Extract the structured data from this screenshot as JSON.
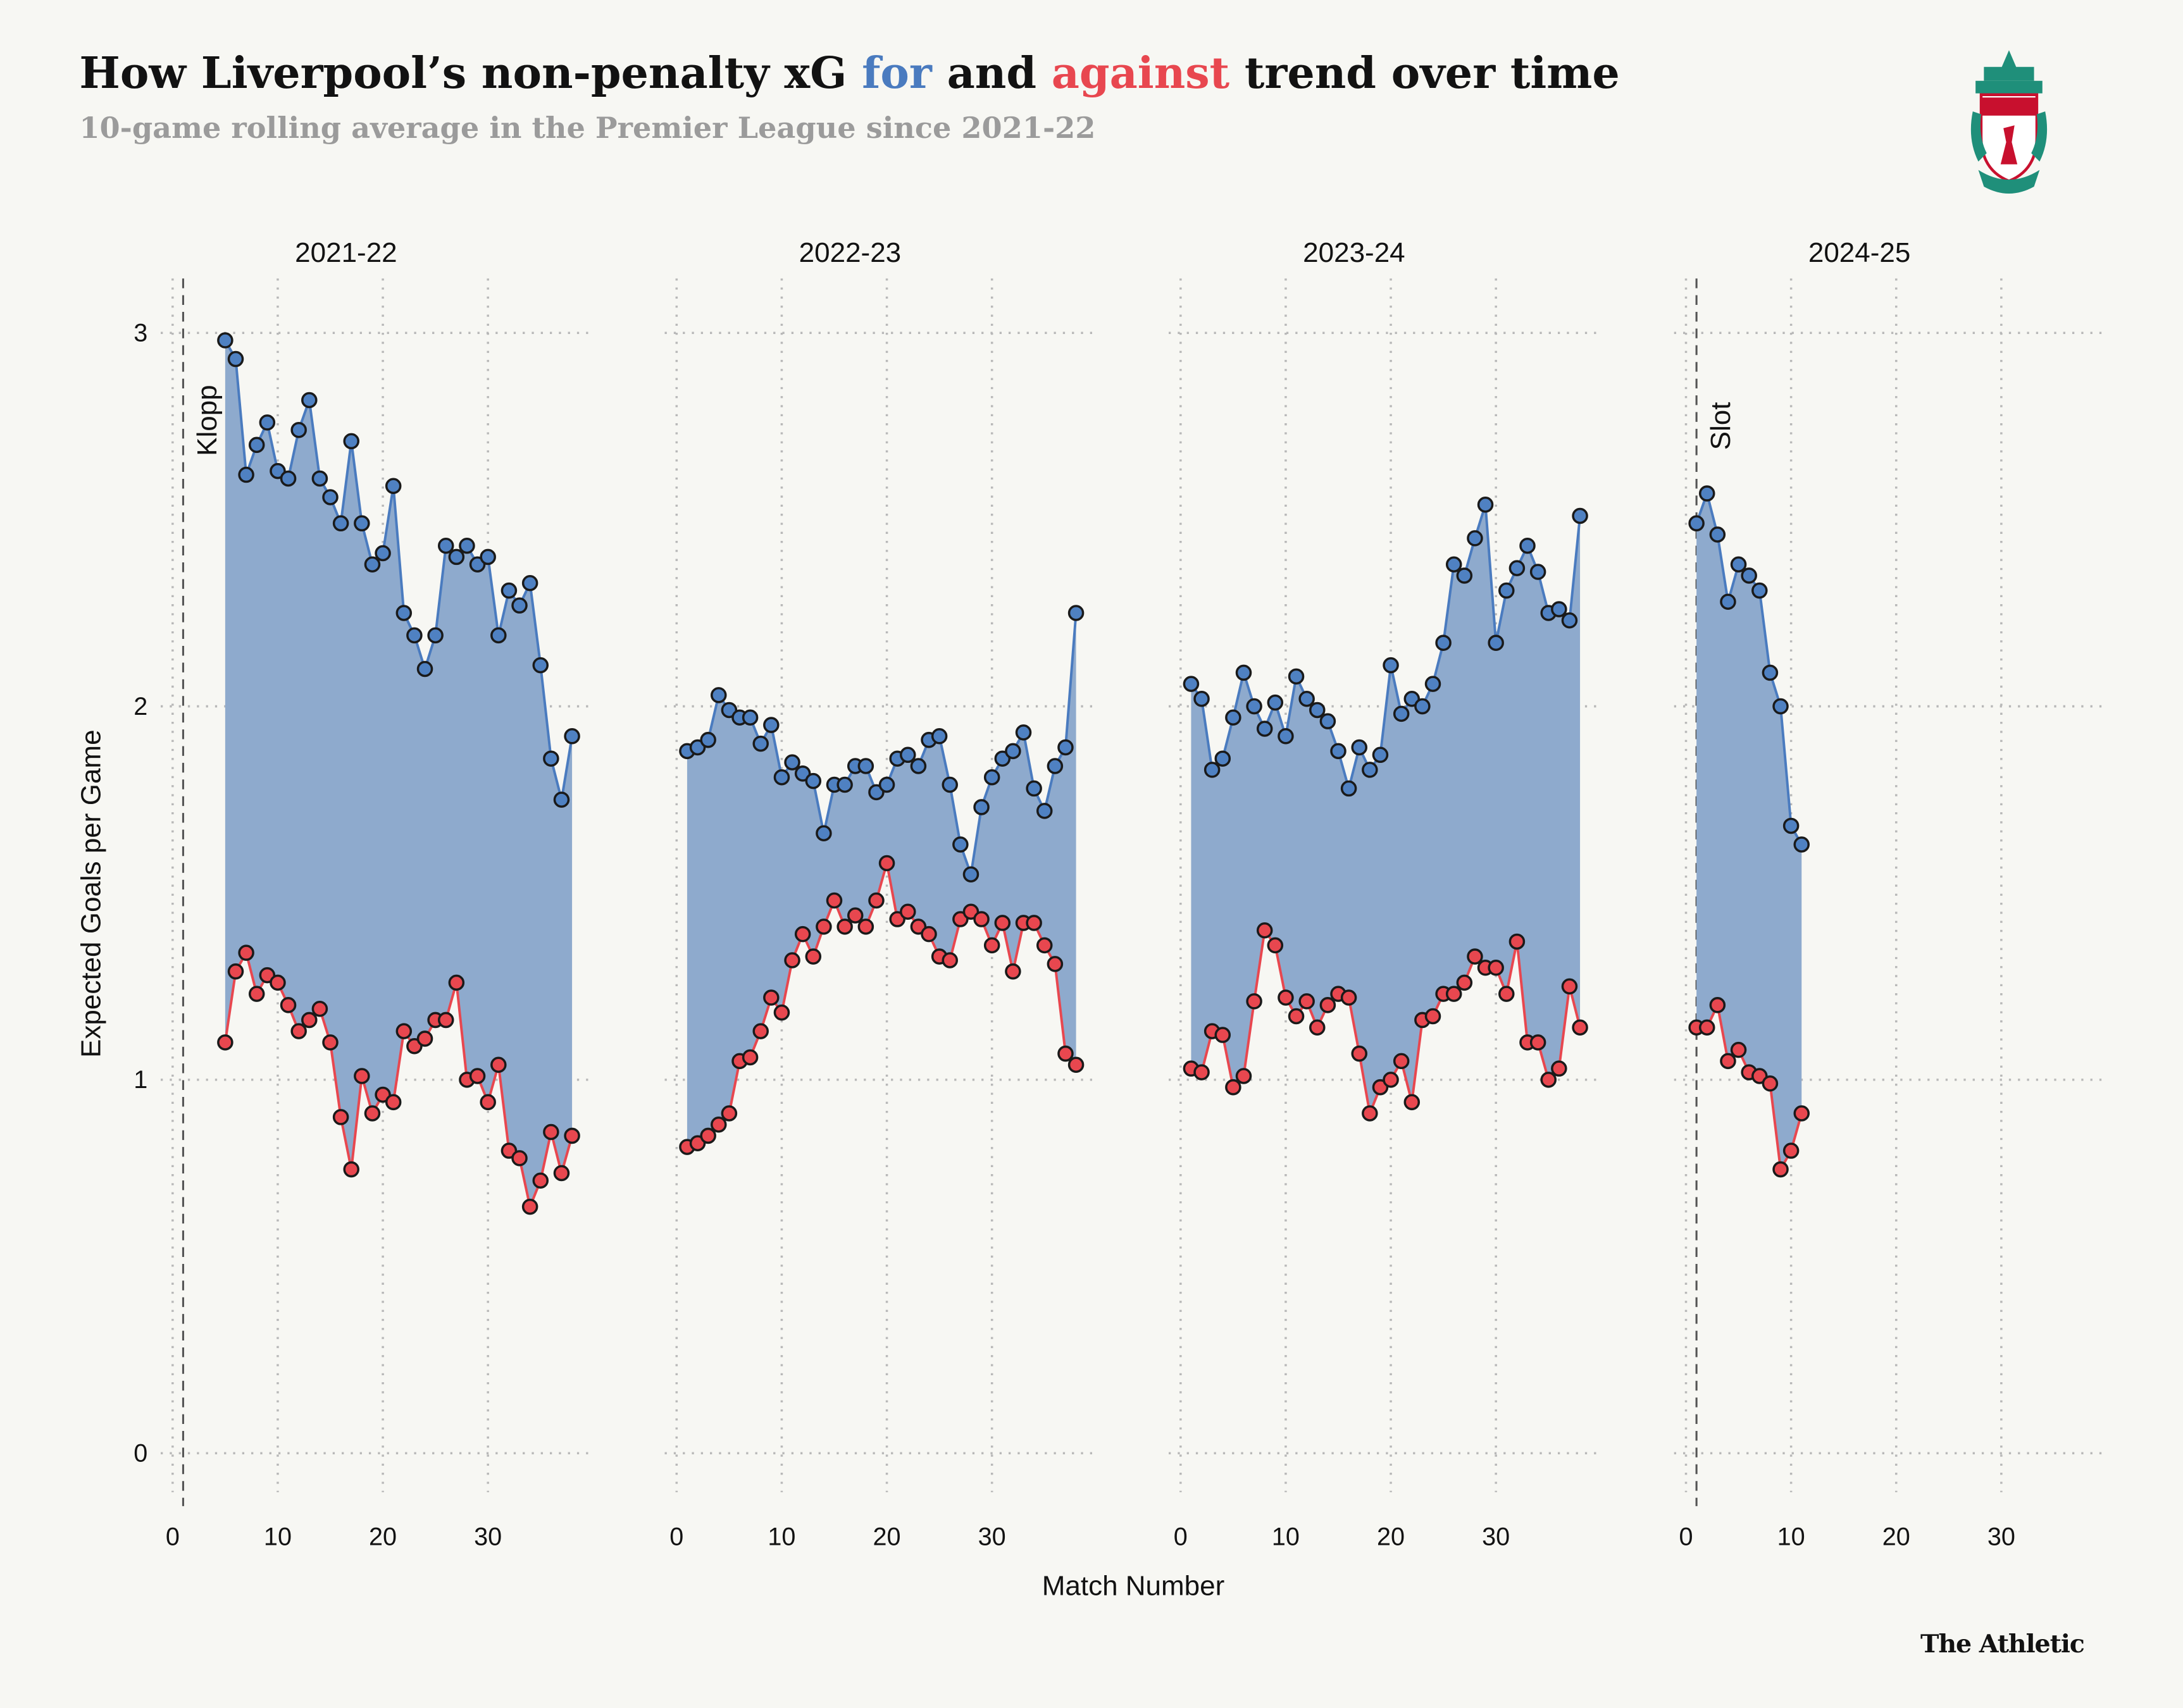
{
  "header": {
    "title_parts": [
      "How Liverpool’s non-penalty xG ",
      "for",
      " and ",
      "against",
      " trend over time"
    ],
    "subtitle": "10-game rolling average in the Premier League since 2021-22"
  },
  "logo": {
    "text": "LIVERPOOL FOOTBALL CLUB"
  },
  "footer": {
    "brand": "The Athletic"
  },
  "colors": {
    "for": "#4a7bbf",
    "against": "#e8474f",
    "area": "#8eaacd",
    "background": "#f7f7f3"
  },
  "chart_data": {
    "type": "line",
    "title": "How Liverpool’s non-penalty xG for and against trend over time",
    "subtitle": "10-game rolling average in the Premier League since 2021-22",
    "xlabel": "Match Number",
    "ylabel": "Expected Goals per Game",
    "ylim": [
      -0.1,
      3.1
    ],
    "yticks": [
      0,
      1,
      2,
      3
    ],
    "xlim": [
      -1,
      39
    ],
    "xticks": [
      0,
      10,
      20,
      30
    ],
    "grid": true,
    "series_names": [
      "xG for",
      "xG against"
    ],
    "annotations": [
      {
        "panel": 0,
        "match": 1,
        "text": "Klopp"
      },
      {
        "panel": 3,
        "match": 1,
        "text": "Slot"
      }
    ],
    "panels": [
      {
        "season": "2021-22",
        "start_match": 5,
        "for": [
          2.98,
          2.93,
          2.62,
          2.7,
          2.76,
          2.63,
          2.61,
          2.74,
          2.82,
          2.61,
          2.56,
          2.49,
          2.71,
          2.49,
          2.38,
          2.41,
          2.59,
          2.25,
          2.19,
          2.1,
          2.19,
          2.43,
          2.4,
          2.43,
          2.38,
          2.4,
          2.19,
          2.31,
          2.27,
          2.33,
          2.11,
          1.86,
          1.75,
          1.92
        ],
        "against": [
          1.1,
          1.29,
          1.34,
          1.23,
          1.28,
          1.26,
          1.2,
          1.13,
          1.16,
          1.19,
          1.1,
          0.9,
          0.76,
          1.01,
          0.91,
          0.96,
          0.94,
          1.13,
          1.09,
          1.11,
          1.16,
          1.16,
          1.26,
          1.0,
          1.01,
          0.94,
          1.04,
          0.81,
          0.79,
          0.66,
          0.73,
          0.86,
          0.75,
          0.85
        ]
      },
      {
        "season": "2022-23",
        "start_match": 1,
        "for": [
          1.88,
          1.89,
          1.91,
          2.03,
          1.99,
          1.97,
          1.97,
          1.9,
          1.95,
          1.81,
          1.85,
          1.82,
          1.8,
          1.66,
          1.79,
          1.79,
          1.84,
          1.84,
          1.77,
          1.79,
          1.86,
          1.87,
          1.84,
          1.91,
          1.92,
          1.79,
          1.63,
          1.55,
          1.73,
          1.81,
          1.86,
          1.88,
          1.93,
          1.78,
          1.72,
          1.84,
          1.89,
          2.25
        ],
        "against": [
          0.82,
          0.83,
          0.85,
          0.88,
          0.91,
          1.05,
          1.06,
          1.13,
          1.22,
          1.18,
          1.32,
          1.39,
          1.33,
          1.41,
          1.48,
          1.41,
          1.44,
          1.41,
          1.48,
          1.58,
          1.43,
          1.45,
          1.41,
          1.39,
          1.33,
          1.32,
          1.43,
          1.45,
          1.43,
          1.36,
          1.42,
          1.29,
          1.42,
          1.42,
          1.36,
          1.31,
          1.07,
          1.04
        ]
      },
      {
        "season": "2023-24",
        "start_match": 1,
        "for": [
          2.06,
          2.02,
          1.83,
          1.86,
          1.97,
          2.09,
          2.0,
          1.94,
          2.01,
          1.92,
          2.08,
          2.02,
          1.99,
          1.96,
          1.88,
          1.78,
          1.89,
          1.83,
          1.87,
          2.11,
          1.98,
          2.02,
          2.0,
          2.06,
          2.17,
          2.38,
          2.35,
          2.45,
          2.54,
          2.17,
          2.31,
          2.37,
          2.43,
          2.36,
          2.25,
          2.26,
          2.23,
          2.51
        ],
        "against": [
          1.03,
          1.02,
          1.13,
          1.12,
          0.98,
          1.01,
          1.21,
          1.4,
          1.36,
          1.22,
          1.17,
          1.21,
          1.14,
          1.2,
          1.23,
          1.22,
          1.07,
          0.91,
          0.98,
          1.0,
          1.05,
          0.94,
          1.16,
          1.17,
          1.23,
          1.23,
          1.26,
          1.33,
          1.3,
          1.3,
          1.23,
          1.37,
          1.1,
          1.1,
          1.0,
          1.03,
          1.25,
          1.14
        ]
      },
      {
        "season": "2024-25",
        "start_match": 1,
        "for": [
          2.49,
          2.57,
          2.46,
          2.28,
          2.38,
          2.35,
          2.31,
          2.09,
          2.0,
          1.68,
          1.63
        ],
        "against": [
          1.14,
          1.14,
          1.2,
          1.05,
          1.08,
          1.02,
          1.01,
          0.99,
          0.76,
          0.81,
          0.91
        ]
      }
    ]
  }
}
